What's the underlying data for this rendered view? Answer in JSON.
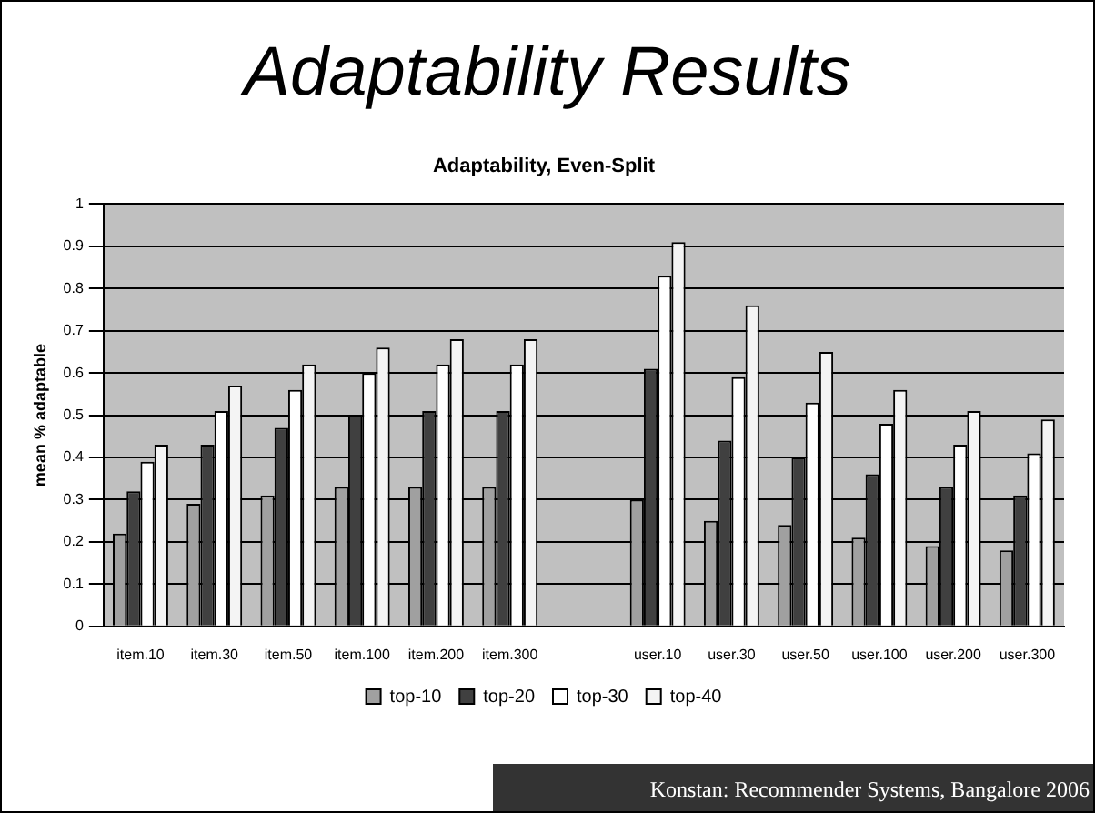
{
  "chart_data": {
    "type": "bar",
    "title": "Adaptability Results",
    "subtitle": "Adaptability, Even-Split",
    "ylabel": "mean % adaptable",
    "categories": [
      "item.10",
      "item.30",
      "item.50",
      "item.100",
      "item.200",
      "item.300",
      null,
      "user.10",
      "user.30",
      "user.50",
      "user.100",
      "user.200",
      "user.300"
    ],
    "series": [
      {
        "name": "top-10",
        "color": "#a0a0a0",
        "values": [
          0.22,
          0.29,
          0.31,
          0.33,
          0.33,
          0.33,
          null,
          0.3,
          0.25,
          0.24,
          0.21,
          0.19,
          0.18
        ]
      },
      {
        "name": "top-20",
        "color": "#404040",
        "values": [
          0.32,
          0.43,
          0.47,
          0.5,
          0.51,
          0.51,
          null,
          0.61,
          0.44,
          0.4,
          0.36,
          0.33,
          0.31
        ]
      },
      {
        "name": "top-30",
        "color": "#ffffff",
        "values": [
          0.39,
          0.51,
          0.56,
          0.6,
          0.62,
          0.62,
          null,
          0.83,
          0.59,
          0.53,
          0.48,
          0.43,
          0.41
        ]
      },
      {
        "name": "top-40",
        "color": "#f4f4f4",
        "values": [
          0.43,
          0.57,
          0.62,
          0.66,
          0.68,
          0.68,
          null,
          0.91,
          0.76,
          0.65,
          0.56,
          0.51,
          0.49
        ]
      }
    ],
    "ylim": [
      0,
      1
    ],
    "yticks": [
      0,
      0.1,
      0.2,
      0.3,
      0.4,
      0.5,
      0.6,
      0.7,
      0.8,
      0.9,
      1
    ],
    "grid": "y",
    "legend": "bottom",
    "annotations": [
      "Konstan:  Recommender Systems, Bangalore 2006"
    ]
  }
}
